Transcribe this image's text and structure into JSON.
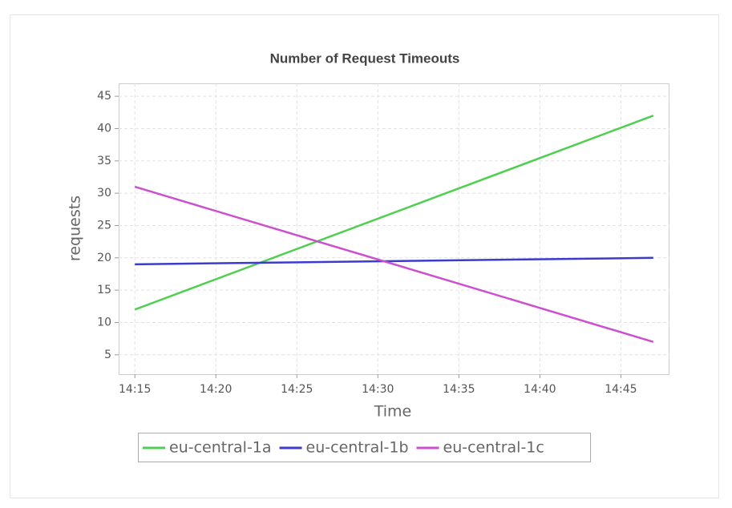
{
  "chart_data": {
    "type": "line",
    "title": "Number of Request Timeouts",
    "x": [
      "14:15",
      "14:47"
    ],
    "series": [
      {
        "name": "eu-central-1a",
        "color": "#4fcf4f",
        "values": [
          12,
          42
        ]
      },
      {
        "name": "eu-central-1b",
        "color": "#3b3bcc",
        "values": [
          19,
          20
        ]
      },
      {
        "name": "eu-central-1c",
        "color": "#cc4fcf",
        "values": [
          31,
          7
        ]
      }
    ],
    "xlim": [
      "14:14",
      "14:48"
    ],
    "xticks": [
      "14:15",
      "14:20",
      "14:25",
      "14:30",
      "14:35",
      "14:40",
      "14:45"
    ],
    "ylim": [
      2,
      47
    ],
    "yticks": [
      5,
      10,
      15,
      20,
      25,
      30,
      35,
      40,
      45
    ],
    "xlabel": "Time",
    "ylabel": "requests",
    "grid": true
  }
}
